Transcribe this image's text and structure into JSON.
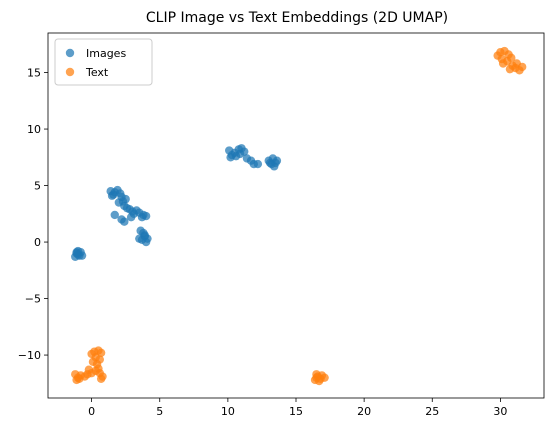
{
  "chart_data": {
    "type": "scatter",
    "title": "CLIP Image vs Text Embeddings (2D UMAP)",
    "xlabel": "",
    "ylabel": "",
    "xlim": [
      -3.2,
      33.2
    ],
    "ylim": [
      -13.8,
      18.5
    ],
    "xticks": [
      0,
      5,
      10,
      15,
      20,
      25,
      30
    ],
    "yticks": [
      -10,
      -5,
      0,
      5,
      10,
      15
    ],
    "legend": {
      "position": "top-left"
    },
    "series": [
      {
        "name": "Images",
        "color": "#1f77b4",
        "points": [
          [
            -1.0,
            -0.8
          ],
          [
            -1.1,
            -1.0
          ],
          [
            -0.8,
            -0.9
          ],
          [
            -1.2,
            -1.3
          ],
          [
            -0.9,
            -1.2
          ],
          [
            -1.0,
            -1.1
          ],
          [
            -0.7,
            -1.2
          ],
          [
            -1.1,
            -0.9
          ],
          [
            1.4,
            4.5
          ],
          [
            1.6,
            4.2
          ],
          [
            1.9,
            4.6
          ],
          [
            1.7,
            4.4
          ],
          [
            2.2,
            4.0
          ],
          [
            2.5,
            3.8
          ],
          [
            2.0,
            3.5
          ],
          [
            2.4,
            3.2
          ],
          [
            2.6,
            3.0
          ],
          [
            2.3,
            3.6
          ],
          [
            2.1,
            4.3
          ],
          [
            1.5,
            4.1
          ],
          [
            2.8,
            2.9
          ],
          [
            3.0,
            2.7
          ],
          [
            3.3,
            2.8
          ],
          [
            3.5,
            2.6
          ],
          [
            3.8,
            2.4
          ],
          [
            4.0,
            2.3
          ],
          [
            3.7,
            2.2
          ],
          [
            3.1,
            2.5
          ],
          [
            2.9,
            2.2
          ],
          [
            1.7,
            2.4
          ],
          [
            2.2,
            2.0
          ],
          [
            2.4,
            1.8
          ],
          [
            3.6,
            1.0
          ],
          [
            3.8,
            0.8
          ],
          [
            3.9,
            0.5
          ],
          [
            4.1,
            0.3
          ],
          [
            3.7,
            0.2
          ],
          [
            4.0,
            0.0
          ],
          [
            3.9,
            0.6
          ],
          [
            3.5,
            0.3
          ],
          [
            10.1,
            8.1
          ],
          [
            10.3,
            7.7
          ],
          [
            10.5,
            7.9
          ],
          [
            10.8,
            8.2
          ],
          [
            11.0,
            8.3
          ],
          [
            11.2,
            8.0
          ],
          [
            10.6,
            7.6
          ],
          [
            10.2,
            7.5
          ],
          [
            11.4,
            7.4
          ],
          [
            11.7,
            7.2
          ],
          [
            11.9,
            6.9
          ],
          [
            12.2,
            6.9
          ],
          [
            10.9,
            7.8
          ],
          [
            13.0,
            7.2
          ],
          [
            13.3,
            7.4
          ],
          [
            13.5,
            7.0
          ],
          [
            13.4,
            6.7
          ],
          [
            13.2,
            6.9
          ],
          [
            13.6,
            7.2
          ],
          [
            13.1,
            7.0
          ]
        ]
      },
      {
        "name": "Text",
        "color": "#ff7f0e",
        "points": [
          [
            29.8,
            16.5
          ],
          [
            30.0,
            16.8
          ],
          [
            30.3,
            16.9
          ],
          [
            30.6,
            16.6
          ],
          [
            30.8,
            16.3
          ],
          [
            30.5,
            16.0
          ],
          [
            30.2,
            15.8
          ],
          [
            30.9,
            15.6
          ],
          [
            31.1,
            15.4
          ],
          [
            31.4,
            15.2
          ],
          [
            31.6,
            15.5
          ],
          [
            30.7,
            15.3
          ],
          [
            30.1,
            16.2
          ],
          [
            31.2,
            15.8
          ],
          [
            -1.2,
            -11.7
          ],
          [
            -1.0,
            -12.0
          ],
          [
            -0.8,
            -11.8
          ],
          [
            -0.5,
            -11.9
          ],
          [
            -0.9,
            -12.1
          ],
          [
            -0.3,
            -11.7
          ],
          [
            -1.1,
            -12.2
          ],
          [
            0.0,
            -9.9
          ],
          [
            0.2,
            -9.7
          ],
          [
            0.5,
            -9.6
          ],
          [
            0.7,
            -9.8
          ],
          [
            0.3,
            -10.2
          ],
          [
            0.6,
            -10.4
          ],
          [
            0.1,
            -10.6
          ],
          [
            0.4,
            -10.8
          ],
          [
            0.5,
            -11.2
          ],
          [
            0.6,
            -11.6
          ],
          [
            0.8,
            -11.9
          ],
          [
            0.7,
            -12.1
          ],
          [
            0.3,
            -11.4
          ],
          [
            -0.2,
            -11.3
          ],
          [
            0.0,
            -11.6
          ],
          [
            16.4,
            -12.2
          ],
          [
            16.6,
            -11.9
          ],
          [
            16.8,
            -12.1
          ],
          [
            16.5,
            -11.7
          ],
          [
            16.9,
            -11.8
          ],
          [
            17.1,
            -12.0
          ],
          [
            16.7,
            -12.3
          ],
          [
            16.5,
            -12.0
          ]
        ]
      }
    ]
  }
}
